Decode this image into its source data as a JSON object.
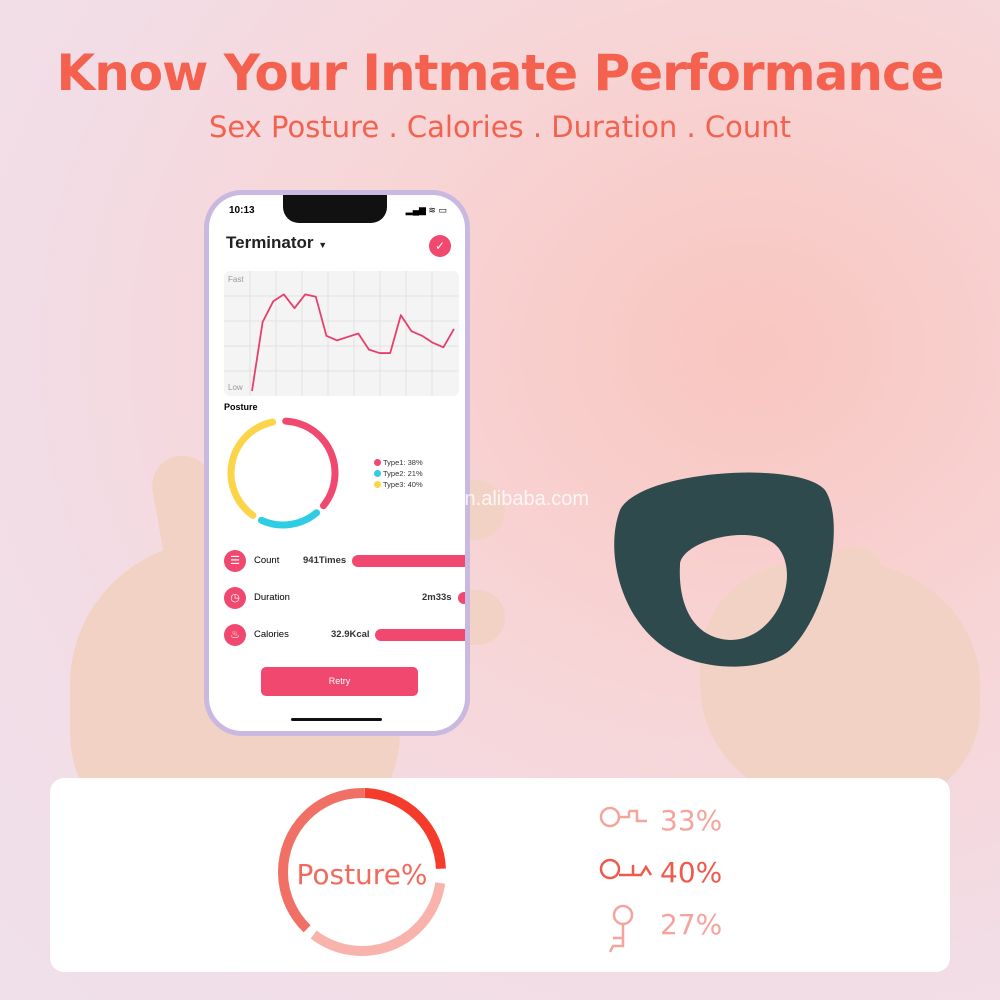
{
  "headline": {
    "title": "Know Your Intmate Performance",
    "subtitle": "Sex Posture . Calories . Duration . Count"
  },
  "watermark": "shmeidong.en.alibaba.com",
  "phone": {
    "time": "10:13",
    "status_icons": [
      "signal-icon",
      "wifi-icon",
      "battery-icon"
    ],
    "app_title": "Terminator",
    "confirm_icon": "check-icon",
    "chart_data": {
      "type": "line",
      "ylabels": {
        "top": "Fast",
        "bottom": "Low"
      },
      "grid": true,
      "color": "#e83e6c",
      "values": [
        0,
        60,
        78,
        84,
        72,
        84,
        82,
        48,
        44,
        47,
        50,
        36,
        33,
        33,
        66,
        52,
        48,
        42,
        38,
        54
      ]
    },
    "posture": {
      "label": "Posture",
      "items": [
        {
          "label": "Type1: 38%",
          "value": 38,
          "color": "#f1486f"
        },
        {
          "label": "Type2: 21%",
          "value": 21,
          "color": "#2fcde4"
        },
        {
          "label": "Type3: 40%",
          "value": 40,
          "color": "#fbd44a"
        }
      ]
    },
    "stats": [
      {
        "name": "Count",
        "value": "941Times",
        "icon": "list-icon"
      },
      {
        "name": "Duration",
        "value": "2m33s",
        "icon": "clock-icon"
      },
      {
        "name": "Calories",
        "value": "32.9Kcal",
        "icon": "flame-icon"
      }
    ],
    "retry_label": "Retry"
  },
  "summary": {
    "ring_label": "Posture%",
    "ring_colors": [
      "#f43b2c",
      "#f9b3ad",
      "#f07066"
    ],
    "items": [
      {
        "value": "33%",
        "color": "#f5a49c",
        "icon": "posture-lying-icon"
      },
      {
        "value": "40%",
        "color": "#ee5a4c",
        "icon": "posture-lying-knee-icon"
      },
      {
        "value": "27%",
        "color": "#f5a49c",
        "icon": "posture-sitting-icon"
      }
    ]
  }
}
